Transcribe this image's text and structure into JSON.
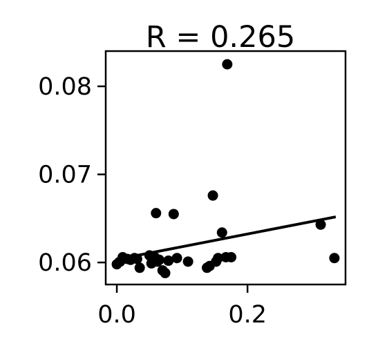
{
  "chart_data": {
    "type": "scatter",
    "title": "R = 0.265",
    "xlabel": "",
    "ylabel": "",
    "xlim": [
      -0.017,
      0.35
    ],
    "ylim": [
      0.0575,
      0.084
    ],
    "x_ticks": [
      {
        "value": 0.0,
        "label": "0.0"
      },
      {
        "value": 0.2,
        "label": "0.2"
      }
    ],
    "y_ticks": [
      {
        "value": 0.06,
        "label": "0.06"
      },
      {
        "value": 0.07,
        "label": "0.07"
      },
      {
        "value": 0.08,
        "label": "0.08"
      }
    ],
    "grid": false,
    "legend": "none",
    "point_color": "#000000",
    "line_color": "#000000",
    "points": [
      {
        "x": 0.0,
        "y": 0.0598
      },
      {
        "x": 0.005,
        "y": 0.0601
      },
      {
        "x": 0.009,
        "y": 0.0606
      },
      {
        "x": 0.016,
        "y": 0.0604
      },
      {
        "x": 0.021,
        "y": 0.0603
      },
      {
        "x": 0.027,
        "y": 0.0605
      },
      {
        "x": 0.031,
        "y": 0.0604
      },
      {
        "x": 0.035,
        "y": 0.0594
      },
      {
        "x": 0.05,
        "y": 0.0608
      },
      {
        "x": 0.053,
        "y": 0.0599
      },
      {
        "x": 0.058,
        "y": 0.0606
      },
      {
        "x": 0.06,
        "y": 0.0656
      },
      {
        "x": 0.062,
        "y": 0.0601
      },
      {
        "x": 0.065,
        "y": 0.0603
      },
      {
        "x": 0.07,
        "y": 0.0591
      },
      {
        "x": 0.074,
        "y": 0.0588
      },
      {
        "x": 0.079,
        "y": 0.0602
      },
      {
        "x": 0.087,
        "y": 0.0655
      },
      {
        "x": 0.092,
        "y": 0.0605
      },
      {
        "x": 0.109,
        "y": 0.0601
      },
      {
        "x": 0.138,
        "y": 0.0594
      },
      {
        "x": 0.142,
        "y": 0.0596
      },
      {
        "x": 0.147,
        "y": 0.0676
      },
      {
        "x": 0.152,
        "y": 0.0601
      },
      {
        "x": 0.155,
        "y": 0.0605
      },
      {
        "x": 0.161,
        "y": 0.0634
      },
      {
        "x": 0.167,
        "y": 0.0606
      },
      {
        "x": 0.169,
        "y": 0.0825
      },
      {
        "x": 0.175,
        "y": 0.0606
      },
      {
        "x": 0.312,
        "y": 0.0643
      },
      {
        "x": 0.333,
        "y": 0.0605
      }
    ],
    "trendline": {
      "x": [
        0.0,
        0.333
      ],
      "y": [
        0.06035,
        0.06515
      ]
    }
  }
}
